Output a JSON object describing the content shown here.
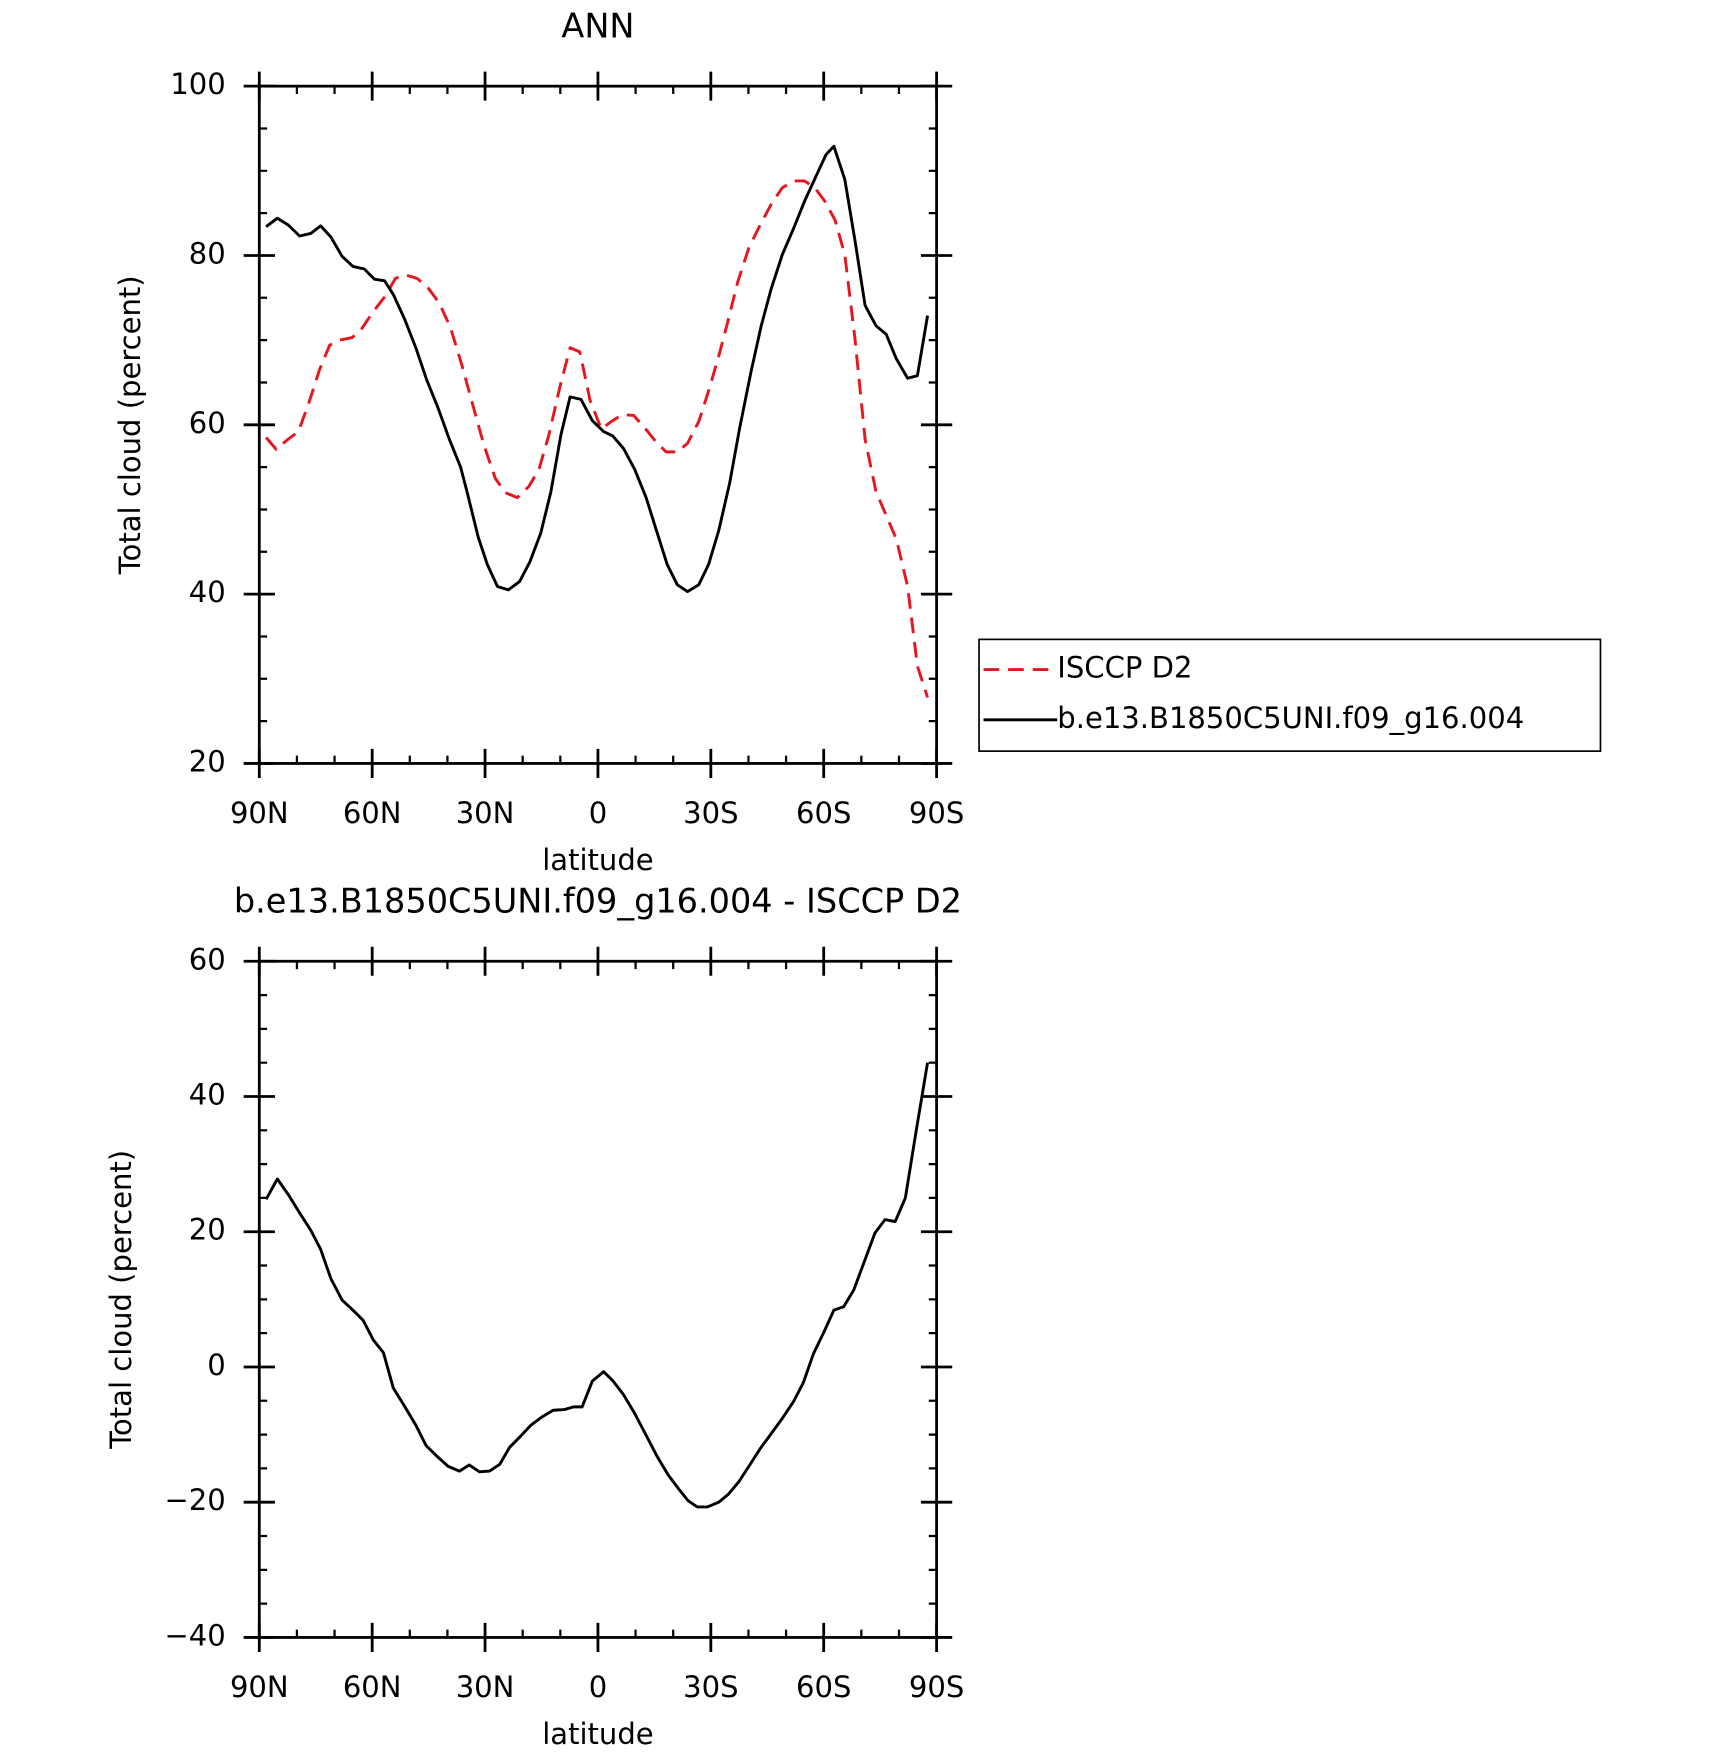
{
  "chart_data": [
    {
      "type": "line",
      "title": "ANN",
      "x_label": "latitude",
      "y_label": "Total cloud (percent)",
      "xlim": [
        90,
        -90
      ],
      "ylim": [
        20,
        100
      ],
      "xticks": [
        {
          "value": 90,
          "label": "90N"
        },
        {
          "value": 60,
          "label": "60N"
        },
        {
          "value": 30,
          "label": "30N"
        },
        0,
        {
          "value": -30,
          "label": "30S"
        },
        {
          "value": -60,
          "label": "60S"
        },
        {
          "value": -90,
          "label": "90S"
        }
      ],
      "xminorticks": [
        80,
        70,
        50,
        40,
        20,
        10,
        -10,
        -20,
        -40,
        -50,
        -70,
        -80
      ],
      "yticks": [
        20,
        40,
        60,
        80,
        100
      ],
      "yminorticks": [
        25,
        30,
        35,
        45,
        50,
        55,
        65,
        70,
        75,
        85,
        90,
        95
      ],
      "legend": "right",
      "series": [
        {
          "name": "ISCCP D2",
          "color": "#e8141e",
          "dash": true,
          "x": [
            88.2,
            85.5,
            82.6,
            79.6,
            76.9,
            74.0,
            71.3,
            68.6,
            65.3,
            62.7,
            60.0,
            56.7,
            53.8,
            51.1,
            48.1,
            45.2,
            42.2,
            39.2,
            36.2,
            33.3,
            30.3,
            27.3,
            24.7,
            21.4,
            18.4,
            15.7,
            13.1,
            10.1,
            7.4,
            4.8,
            2.1,
            -0.9,
            -3.6,
            -6.5,
            -9.5,
            -12.5,
            -15.4,
            -18.1,
            -21.1,
            -23.8,
            -26.8,
            -29.4,
            -32.1,
            -34.7,
            -37.1,
            -40.1,
            -43.1,
            -46.0,
            -49.0,
            -52.0,
            -54.9,
            -57.6,
            -60.3,
            -63.0,
            -65.6,
            -68.3,
            -71.0,
            -73.9,
            -76.6,
            -79.3,
            -82.3,
            -84.9,
            -87.6
          ],
          "values": [
            58.5,
            57.1,
            58.2,
            59.2,
            62.5,
            66.5,
            69.4,
            70.0,
            70.3,
            71.4,
            73.2,
            75.1,
            77.3,
            77.7,
            77.3,
            76.2,
            74.4,
            71.5,
            67.1,
            62.4,
            57.6,
            53.7,
            52.0,
            51.4,
            52.7,
            54.7,
            58.7,
            64.5,
            69.1,
            68.6,
            62.9,
            59.5,
            60.4,
            61.2,
            61.1,
            59.6,
            58.0,
            56.8,
            56.8,
            57.8,
            60.4,
            64.0,
            68.1,
            72.5,
            76.8,
            80.9,
            83.6,
            86.0,
            88.0,
            88.8,
            88.8,
            88.0,
            86.4,
            84.2,
            80.1,
            70.2,
            58.3,
            52.1,
            49.3,
            46.5,
            40.9,
            31.5,
            27.8
          ]
        },
        {
          "name": "b.e13.B1850C5UNI.f09_g16.004",
          "color": "#000000",
          "dash": false,
          "x": [
            88.2,
            85.2,
            82.3,
            79.3,
            76.3,
            73.7,
            71.0,
            68.0,
            65.1,
            62.1,
            59.4,
            56.7,
            54.4,
            51.4,
            48.4,
            45.5,
            42.5,
            39.5,
            36.5,
            34.8,
            31.8,
            29.4,
            26.7,
            23.8,
            20.8,
            18.1,
            15.2,
            12.5,
            9.8,
            7.4,
            4.5,
            1.5,
            -1.5,
            -3.9,
            -6.8,
            -9.8,
            -12.8,
            -15.7,
            -18.4,
            -21.1,
            -23.8,
            -26.8,
            -29.4,
            -32.1,
            -35.0,
            -37.7,
            -40.7,
            -43.4,
            -46.0,
            -49.0,
            -52.0,
            -54.9,
            -57.9,
            -60.6,
            -62.7,
            -65.6,
            -68.3,
            -71.0,
            -73.9,
            -76.6,
            -79.3,
            -82.3,
            -84.9,
            -87.6
          ],
          "values": [
            83.4,
            84.4,
            83.6,
            82.3,
            82.6,
            83.5,
            82.2,
            79.9,
            78.7,
            78.4,
            77.2,
            77.0,
            75.4,
            72.5,
            69.1,
            65.3,
            62.0,
            58.3,
            55.0,
            52.1,
            46.7,
            43.5,
            40.9,
            40.5,
            41.5,
            43.8,
            47.2,
            52.1,
            58.9,
            63.3,
            63.0,
            60.5,
            59.2,
            58.7,
            57.2,
            54.7,
            51.4,
            47.3,
            43.5,
            41.1,
            40.3,
            41.1,
            43.5,
            47.5,
            53.1,
            59.7,
            66.3,
            71.7,
            76.0,
            80.1,
            83.2,
            86.4,
            89.3,
            91.9,
            92.9,
            89.0,
            81.8,
            74.1,
            71.7,
            70.7,
            67.8,
            65.5,
            65.8,
            72.9
          ]
        }
      ]
    },
    {
      "type": "line",
      "title": "b.e13.B1850C5UNI.f09_g16.004 - ISCCP D2",
      "x_label": "latitude",
      "y_label": "Total cloud (percent)",
      "xlim": [
        90,
        -90
      ],
      "ylim": [
        -40,
        60
      ],
      "xticks": [
        {
          "value": 90,
          "label": "90N"
        },
        {
          "value": 60,
          "label": "60N"
        },
        {
          "value": 30,
          "label": "30N"
        },
        0,
        {
          "value": -30,
          "label": "30S"
        },
        {
          "value": -60,
          "label": "60S"
        },
        {
          "value": -90,
          "label": "90S"
        }
      ],
      "xminorticks": [
        80,
        70,
        50,
        40,
        20,
        10,
        -10,
        -20,
        -40,
        -50,
        -70,
        -80
      ],
      "yticks": [
        {
          "value": -40,
          "label": "−40"
        },
        {
          "value": -20,
          "label": "−20"
        },
        0,
        20,
        40,
        60
      ],
      "yminorticks": [
        -35,
        -30,
        -25,
        -15,
        -10,
        -5,
        5,
        10,
        15,
        25,
        30,
        35,
        45,
        50,
        55
      ],
      "series": [
        {
          "color": "#000000",
          "dash": false,
          "x": [
            88.2,
            85.2,
            82.3,
            79.3,
            76.3,
            73.7,
            71.0,
            68.0,
            65.1,
            62.4,
            59.7,
            57.0,
            54.4,
            51.4,
            48.4,
            45.7,
            42.8,
            39.8,
            36.8,
            34.2,
            31.5,
            28.8,
            26.1,
            23.5,
            20.5,
            17.8,
            14.9,
            11.9,
            8.9,
            6.5,
            4.2,
            1.5,
            -1.5,
            -3.9,
            -6.8,
            -9.8,
            -12.8,
            -15.7,
            -18.7,
            -21.4,
            -24.0,
            -26.4,
            -29.1,
            -32.1,
            -34.7,
            -37.4,
            -40.1,
            -43.1,
            -46.0,
            -49.0,
            -52.0,
            -54.6,
            -57.3,
            -60.0,
            -62.7,
            -65.3,
            -68.0,
            -71.0,
            -73.6,
            -76.3,
            -79.0,
            -81.7,
            -84.6,
            -87.6
          ],
          "values": [
            24.8,
            27.8,
            25.5,
            22.8,
            20.2,
            17.4,
            13.1,
            9.9,
            8.4,
            6.9,
            4.0,
            2.1,
            -3.1,
            -5.8,
            -8.6,
            -11.6,
            -13.2,
            -14.7,
            -15.4,
            -14.5,
            -15.5,
            -15.4,
            -14.4,
            -11.9,
            -10.2,
            -8.6,
            -7.4,
            -6.4,
            -6.3,
            -5.9,
            -5.9,
            -2.1,
            -0.7,
            -2.0,
            -4.1,
            -6.9,
            -10.1,
            -13.2,
            -16.0,
            -18.0,
            -19.8,
            -20.7,
            -20.7,
            -20.0,
            -18.8,
            -17.0,
            -14.7,
            -12.1,
            -9.9,
            -7.6,
            -5.1,
            -2.3,
            2.0,
            5.1,
            8.4,
            8.9,
            11.4,
            15.9,
            19.8,
            21.8,
            21.5,
            25.0,
            35.0,
            45.0
          ]
        }
      ]
    }
  ]
}
